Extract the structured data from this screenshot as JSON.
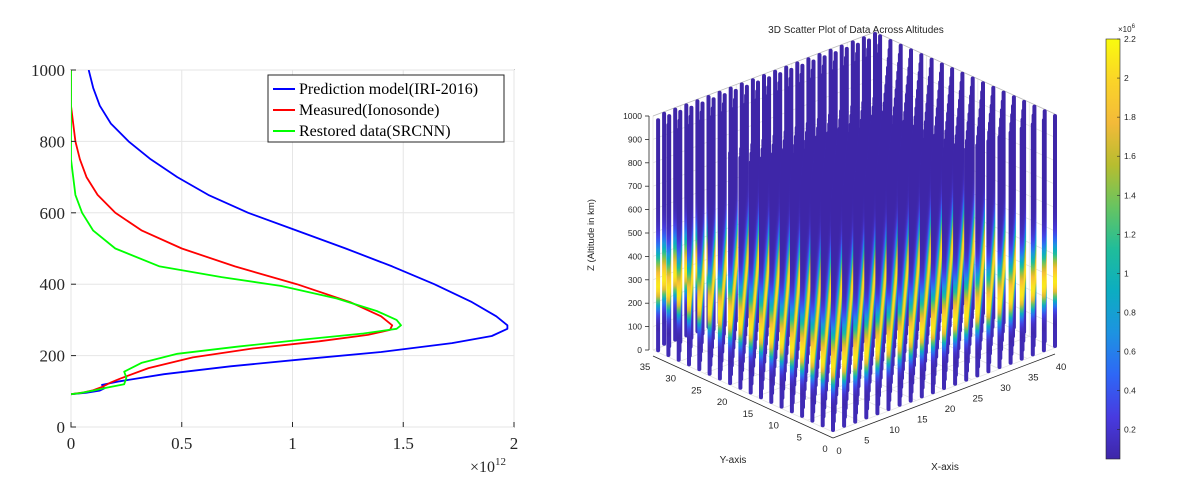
{
  "chart_data": [
    {
      "type": "line",
      "title": "",
      "xlabel": "",
      "ylabel": "",
      "x_exponent": "×10",
      "x_exponent_power": "12",
      "xlim": [
        0,
        2
      ],
      "ylim": [
        0,
        1000
      ],
      "x_ticks": [
        "0",
        "0.5",
        "1",
        "1.5",
        "2"
      ],
      "y_ticks": [
        "0",
        "200",
        "400",
        "600",
        "800",
        "1000"
      ],
      "grid": true,
      "legend_position": "top-right",
      "series": [
        {
          "name": "Prediction model(IRI-2016)",
          "color": "#0000ff",
          "points": [
            [
              0.08,
              1000
            ],
            [
              0.1,
              950
            ],
            [
              0.13,
              900
            ],
            [
              0.18,
              850
            ],
            [
              0.26,
              800
            ],
            [
              0.36,
              750
            ],
            [
              0.48,
              700
            ],
            [
              0.62,
              650
            ],
            [
              0.8,
              600
            ],
            [
              1.02,
              550
            ],
            [
              1.24,
              500
            ],
            [
              1.45,
              450
            ],
            [
              1.64,
              400
            ],
            [
              1.81,
              350
            ],
            [
              1.92,
              310
            ],
            [
              1.97,
              285
            ],
            [
              1.97,
              275
            ],
            [
              1.9,
              255
            ],
            [
              1.72,
              235
            ],
            [
              1.4,
              210
            ],
            [
              1.05,
              190
            ],
            [
              0.72,
              170
            ],
            [
              0.42,
              148
            ],
            [
              0.22,
              128
            ],
            [
              0.14,
              118
            ],
            [
              0.15,
              108
            ],
            [
              0.13,
              102
            ],
            [
              0.07,
              96
            ],
            [
              0.0,
              92
            ]
          ]
        },
        {
          "name": "Measured(Ionosonde)",
          "color": "#ff0000",
          "points": [
            [
              0.0,
              1000
            ],
            [
              0.0,
              900
            ],
            [
              0.01,
              850
            ],
            [
              0.02,
              800
            ],
            [
              0.04,
              750
            ],
            [
              0.07,
              700
            ],
            [
              0.12,
              650
            ],
            [
              0.2,
              600
            ],
            [
              0.32,
              550
            ],
            [
              0.5,
              500
            ],
            [
              0.74,
              450
            ],
            [
              1.02,
              400
            ],
            [
              1.26,
              350
            ],
            [
              1.4,
              310
            ],
            [
              1.45,
              285
            ],
            [
              1.44,
              272
            ],
            [
              1.34,
              258
            ],
            [
              1.12,
              240
            ],
            [
              0.82,
              220
            ],
            [
              0.55,
              195
            ],
            [
              0.35,
              165
            ],
            [
              0.22,
              135
            ],
            [
              0.18,
              125
            ],
            [
              0.14,
              112
            ],
            [
              0.1,
              103
            ],
            [
              0.05,
              96
            ],
            [
              0.0,
              92
            ]
          ]
        },
        {
          "name": "Restored data(SRCNN)",
          "color": "#00ff00",
          "points": [
            [
              0.0,
              1000
            ],
            [
              0.0,
              850
            ],
            [
              0.0,
              750
            ],
            [
              0.01,
              700
            ],
            [
              0.02,
              650
            ],
            [
              0.05,
              600
            ],
            [
              0.1,
              550
            ],
            [
              0.2,
              500
            ],
            [
              0.4,
              450
            ],
            [
              0.68,
              420
            ],
            [
              0.95,
              395
            ],
            [
              1.2,
              360
            ],
            [
              1.38,
              325
            ],
            [
              1.47,
              300
            ],
            [
              1.49,
              285
            ],
            [
              1.47,
              275
            ],
            [
              1.32,
              262
            ],
            [
              1.05,
              245
            ],
            [
              0.75,
              225
            ],
            [
              0.48,
              205
            ],
            [
              0.32,
              180
            ],
            [
              0.24,
              155
            ],
            [
              0.25,
              138
            ],
            [
              0.24,
              120
            ],
            [
              0.16,
              110
            ],
            [
              0.1,
              102
            ],
            [
              0.04,
              95
            ],
            [
              0.0,
              92
            ]
          ]
        }
      ]
    },
    {
      "type": "scatter",
      "title": "3D Scatter Plot of Data Across Altitudes",
      "xlabel": "X-axis",
      "ylabel": "Y-axis",
      "zlabel": "Z (Altitude in km)",
      "xlim": [
        0,
        40
      ],
      "ylim": [
        0,
        35
      ],
      "zlim": [
        0,
        1000
      ],
      "x_ticks": [
        "0",
        "5",
        "10",
        "15",
        "20",
        "25",
        "30",
        "35",
        "40"
      ],
      "y_ticks": [
        "0",
        "5",
        "10",
        "15",
        "20",
        "25",
        "30",
        "35"
      ],
      "z_ticks": [
        "0",
        "100",
        "200",
        "300",
        "400",
        "500",
        "600",
        "700",
        "800",
        "900",
        "1000"
      ],
      "colorbar": {
        "exponent": "×10",
        "exponent_power": "6",
        "ticks": [
          "0.2",
          "0.4",
          "0.6",
          "0.8",
          "1",
          "1.2",
          "1.4",
          "1.6",
          "1.8",
          "2",
          "2.2"
        ],
        "min": 0.05,
        "max": 2.2,
        "colormap": "parula"
      },
      "peak_altitude_km": 280,
      "peak_value": 2.1,
      "grid": true
    }
  ]
}
